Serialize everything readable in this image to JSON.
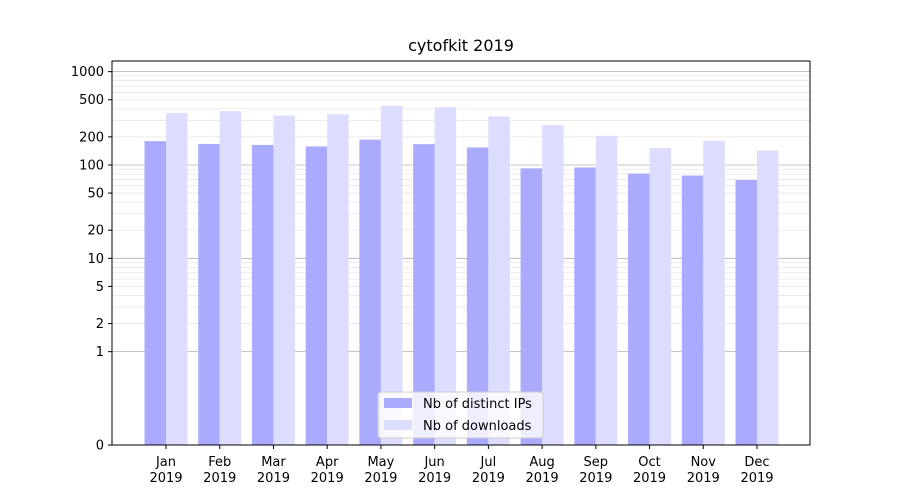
{
  "chart_data": {
    "type": "bar",
    "title": "cytofkit 2019",
    "xlabel": "",
    "ylabel": "",
    "y_scale": "symlog",
    "ylim": [
      0,
      1300
    ],
    "y_ticks": [
      0,
      1,
      2,
      5,
      10,
      20,
      50,
      100,
      200,
      500,
      1000
    ],
    "categories": [
      [
        "Jan",
        "2019"
      ],
      [
        "Feb",
        "2019"
      ],
      [
        "Mar",
        "2019"
      ],
      [
        "Apr",
        "2019"
      ],
      [
        "May",
        "2019"
      ],
      [
        "Jun",
        "2019"
      ],
      [
        "Jul",
        "2019"
      ],
      [
        "Aug",
        "2019"
      ],
      [
        "Sep",
        "2019"
      ],
      [
        "Oct",
        "2019"
      ],
      [
        "Nov",
        "2019"
      ],
      [
        "Dec",
        "2019"
      ]
    ],
    "series": [
      {
        "name": "Nb of distinct IPs",
        "color": "#aaaaff",
        "values": [
          180,
          168,
          164,
          158,
          187,
          167,
          154,
          92,
          94,
          81,
          77,
          69
        ]
      },
      {
        "name": "Nb of downloads",
        "color": "#ddddff",
        "values": [
          360,
          378,
          338,
          350,
          430,
          415,
          332,
          268,
          205,
          152,
          182,
          143
        ]
      }
    ],
    "grid": true,
    "legend_position": "lower center"
  }
}
